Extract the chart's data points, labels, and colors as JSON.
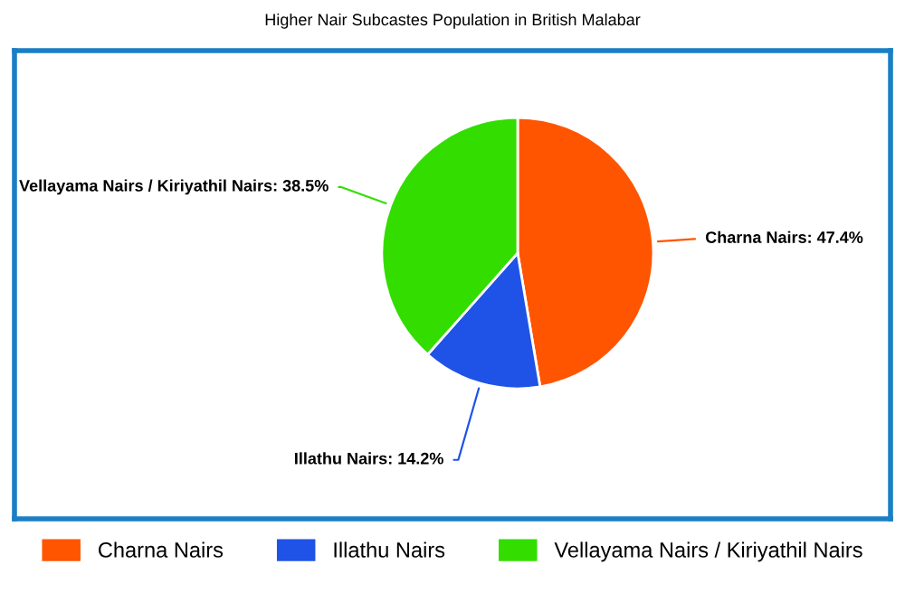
{
  "chart_data": {
    "type": "pie",
    "title": "Higher Nair Subcastes Population in British Malabar",
    "categories": [
      "Charna Nairs",
      "Illathu Nairs",
      "Vellayama Nairs / Kiriyathil Nairs"
    ],
    "values": [
      47.4,
      14.2,
      38.5
    ],
    "value_labels": [
      "Charna Nairs: 47.4%",
      "Illathu Nairs: 14.2%",
      "Vellayama Nairs / Kiriyathil Nairs: 38.5%"
    ],
    "colors": [
      "#ff5500",
      "#1f52e6",
      "#33dd00"
    ],
    "legend": "bottom"
  }
}
